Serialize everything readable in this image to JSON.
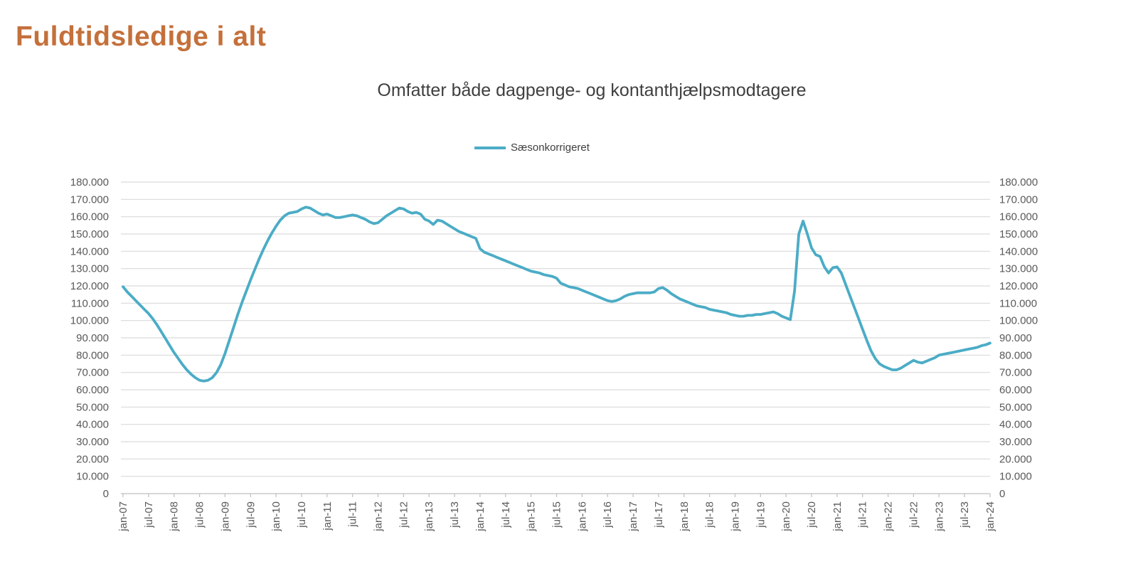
{
  "page": {
    "title": "Fuldtidsledige i alt"
  },
  "colors": {
    "page_title": "#C4703B",
    "chart_title": "#3F3F3F",
    "axis_text": "#595959",
    "legend_text": "#404040",
    "gridline": "#D9D9D9",
    "axis_line": "#BFBFBF",
    "series_line": "#4BACC6",
    "background": "#FFFFFF"
  },
  "chart_data": {
    "type": "line",
    "title": "Omfatter både dagpenge- og kontanthjælpsmodtagere",
    "legend": {
      "position": "top",
      "entries": [
        "Sæsonkorrigeret"
      ]
    },
    "grid": "horizontal",
    "x": {
      "unit": "month",
      "start": "jan-07",
      "end": "jan-24",
      "tick_every_months": 6,
      "tick_label_rotation_deg": -90,
      "tick_labels": [
        "jan-07",
        "jul-07",
        "jan-08",
        "jul-08",
        "jan-09",
        "jul-09",
        "jan-10",
        "jul-10",
        "jan-11",
        "jul-11",
        "jan-12",
        "jul-12",
        "jan-13",
        "jul-13",
        "jan-14",
        "jul-14",
        "jan-15",
        "jul-15",
        "jan-16",
        "jul-16",
        "jan-17",
        "jul-17",
        "jan-18",
        "jul-18",
        "jan-19",
        "jul-19",
        "jan-20",
        "jul-20",
        "jan-21",
        "jul-21",
        "jan-22",
        "jul-22",
        "jan-23",
        "jul-23",
        "jan-24"
      ]
    },
    "y": {
      "min": 0,
      "max": 180000,
      "tick_step": 10000,
      "axis_sides": [
        "left",
        "right"
      ],
      "tick_labels": [
        "0",
        "10.000",
        "20.000",
        "30.000",
        "40.000",
        "50.000",
        "60.000",
        "70.000",
        "80.000",
        "90.000",
        "100.000",
        "110.000",
        "120.000",
        "130.000",
        "140.000",
        "150.000",
        "160.000",
        "170.000",
        "180.000"
      ]
    },
    "series": [
      {
        "name": "Sæsonkorrigeret",
        "color": "#4BACC6",
        "values": [
          119500,
          116500,
          114000,
          111500,
          109000,
          106500,
          104000,
          101000,
          97500,
          93500,
          89500,
          85500,
          81500,
          78000,
          74500,
          71500,
          69000,
          67000,
          65500,
          65000,
          65500,
          67000,
          70000,
          74500,
          81000,
          88500,
          96000,
          103500,
          110500,
          117000,
          123500,
          129500,
          135500,
          141000,
          146000,
          150500,
          154500,
          158000,
          160500,
          162000,
          162500,
          163000,
          164500,
          165500,
          165000,
          163500,
          162000,
          161000,
          161500,
          160500,
          159500,
          159500,
          160000,
          160500,
          161000,
          160500,
          159500,
          158500,
          157000,
          156000,
          156500,
          158500,
          160500,
          162000,
          163500,
          165000,
          164500,
          163000,
          162000,
          162500,
          161500,
          158500,
          157500,
          155500,
          158000,
          157500,
          156000,
          154500,
          153000,
          151500,
          150500,
          149500,
          148500,
          147500,
          141500,
          139500,
          138500,
          137500,
          136500,
          135500,
          134500,
          133500,
          132500,
          131500,
          130500,
          129500,
          128500,
          128000,
          127500,
          126500,
          126000,
          125500,
          124500,
          121500,
          120500,
          119500,
          119000,
          118500,
          117500,
          116500,
          115500,
          114500,
          113500,
          112500,
          111500,
          111000,
          111500,
          112500,
          114000,
          115000,
          115500,
          116000,
          116000,
          116000,
          116000,
          116500,
          118500,
          119000,
          117500,
          115500,
          114000,
          112500,
          111500,
          110500,
          109500,
          108500,
          108000,
          107500,
          106500,
          106000,
          105500,
          105000,
          104500,
          103500,
          103000,
          102500,
          102500,
          103000,
          103000,
          103500,
          103500,
          104000,
          104500,
          105000,
          104000,
          102500,
          101500,
          100500,
          117000,
          150000,
          157500,
          150000,
          142000,
          138000,
          137000,
          131000,
          127500,
          130500,
          131000,
          127500,
          121000,
          114500,
          108000,
          101500,
          95000,
          88500,
          82500,
          78000,
          75000,
          73500,
          72500,
          71500,
          71500,
          72500,
          74000,
          75500,
          77000,
          76000,
          75500,
          76500,
          77500,
          78500,
          80000,
          80500,
          81000,
          81500,
          82000,
          82500,
          83000,
          83500,
          84000,
          84500,
          85500,
          86000,
          87000
        ]
      }
    ]
  }
}
